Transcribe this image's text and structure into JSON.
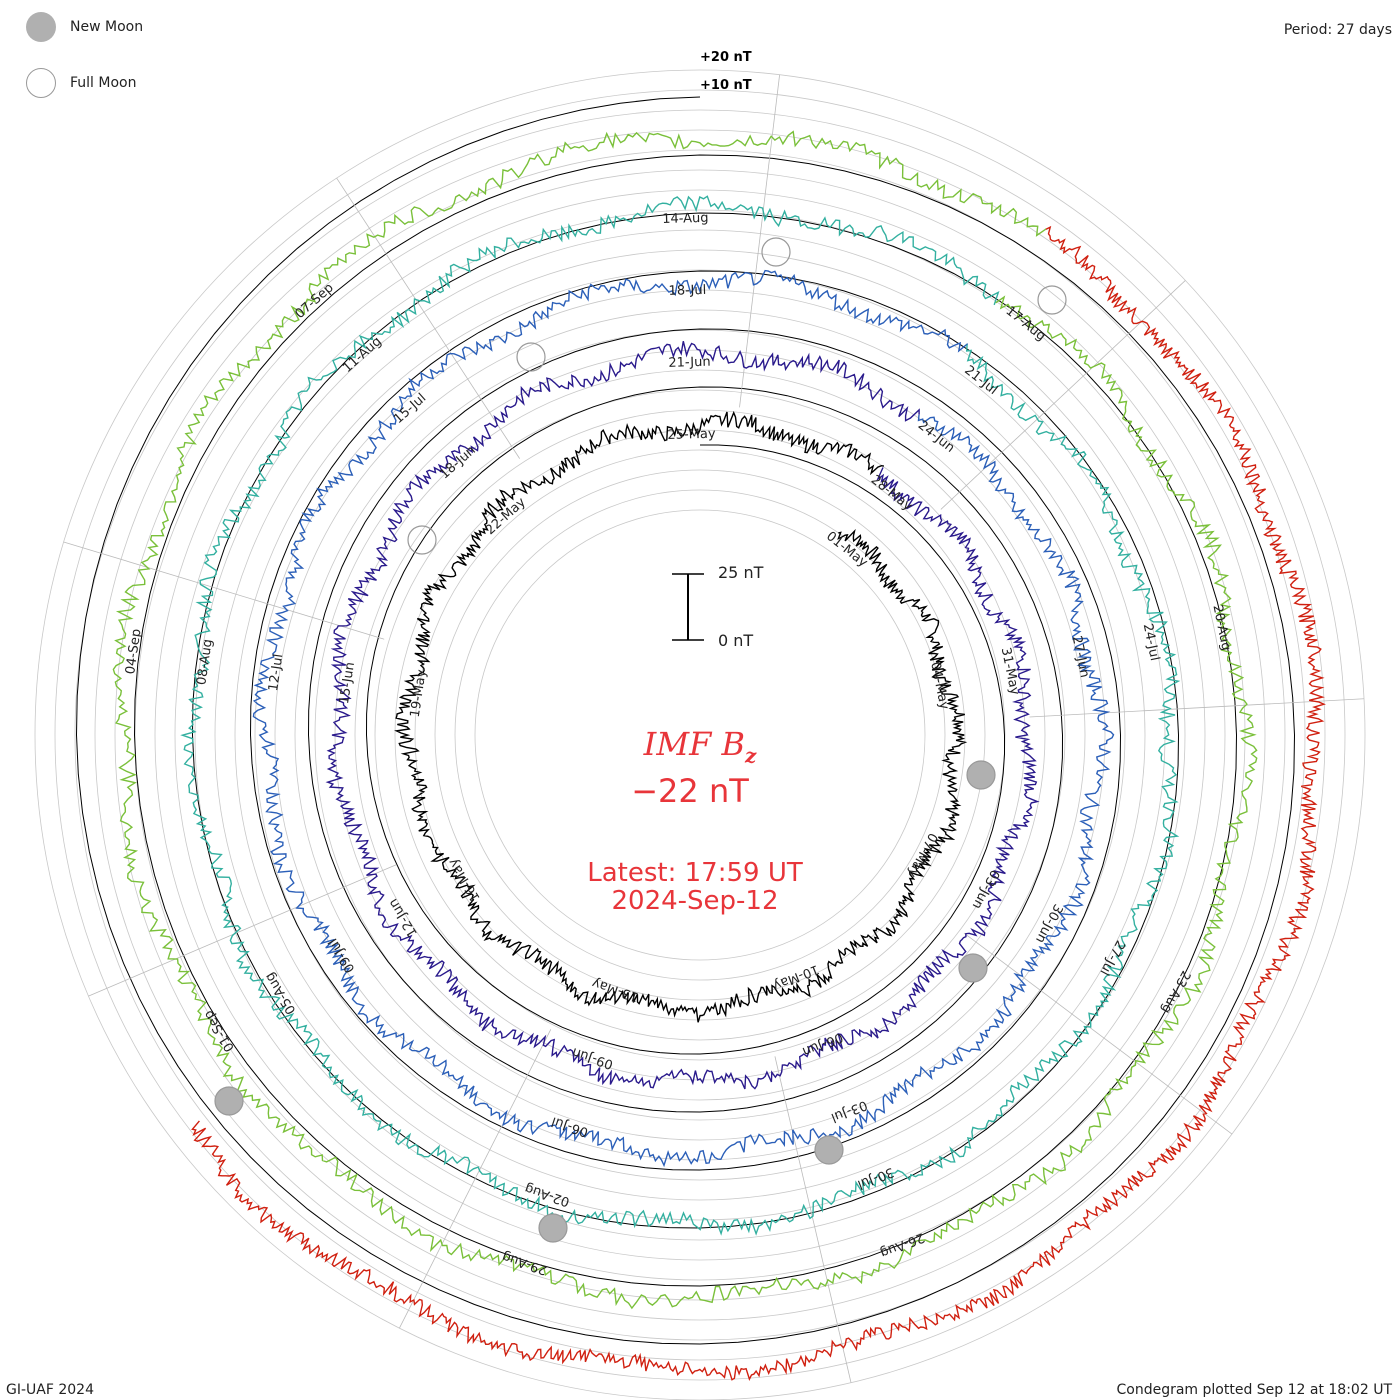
{
  "header": {
    "period": "Period: 27 days"
  },
  "legend": {
    "new_moon": "New Moon",
    "full_moon": "Full Moon"
  },
  "footer": {
    "credit": "GI-UAF 2024",
    "plotted": "Condegram plotted Sep 12 at 18:02 UT"
  },
  "center": {
    "parameter": "IMF B",
    "parameter_sub": "z",
    "current_value": "−22 nT",
    "latest_line1": "Latest: 17:59 UT",
    "latest_line2": "2024-Sep-12"
  },
  "scale_bar": {
    "top_label": "25 nT",
    "bottom_label": "0 nT"
  },
  "colors": {
    "accent": "#e8353a",
    "grid": "#c8c8c8",
    "moon": "#b0b0b0"
  },
  "chart_data": {
    "type": "line",
    "projection": "spiral condegram",
    "period_days": 27,
    "ring_ref_labels": [
      "+20 nT",
      "+10 nT"
    ],
    "series": [
      {
        "color": "#000000",
        "date_labels": [
          "01-May",
          "04-May",
          "07-May",
          "10-May",
          "13-May",
          "16-May",
          "19-May",
          "22-May",
          "25-May"
        ]
      },
      {
        "color": "#2a1a8c",
        "date_labels": [
          "28-May",
          "31-May",
          "03-Jun",
          "06-Jun",
          "09-Jun",
          "12-Jun",
          "15-Jun",
          "18-Jun",
          "21-Jun"
        ]
      },
      {
        "color": "#2b5fb8",
        "date_labels": [
          "24-Jun",
          "27-Jun",
          "30-Jun",
          "03-Jul",
          "06-Jul",
          "09-Jul",
          "12-Jul",
          "15-Jul",
          "18-Jul"
        ]
      },
      {
        "color": "#33b0a0",
        "date_labels": [
          "21-Jul",
          "24-Jul",
          "27-Jul",
          "30-Jul",
          "02-Aug",
          "05-Aug",
          "08-Aug",
          "11-Aug",
          "14-Aug"
        ]
      },
      {
        "color": "#7ac03a",
        "date_labels": [
          "17-Aug",
          "20-Aug",
          "23-Aug",
          "26-Aug",
          "29-Aug",
          "01-Sep",
          "04-Sep",
          "07-Sep"
        ]
      },
      {
        "color": "#d02010",
        "date_labels": []
      }
    ]
  }
}
